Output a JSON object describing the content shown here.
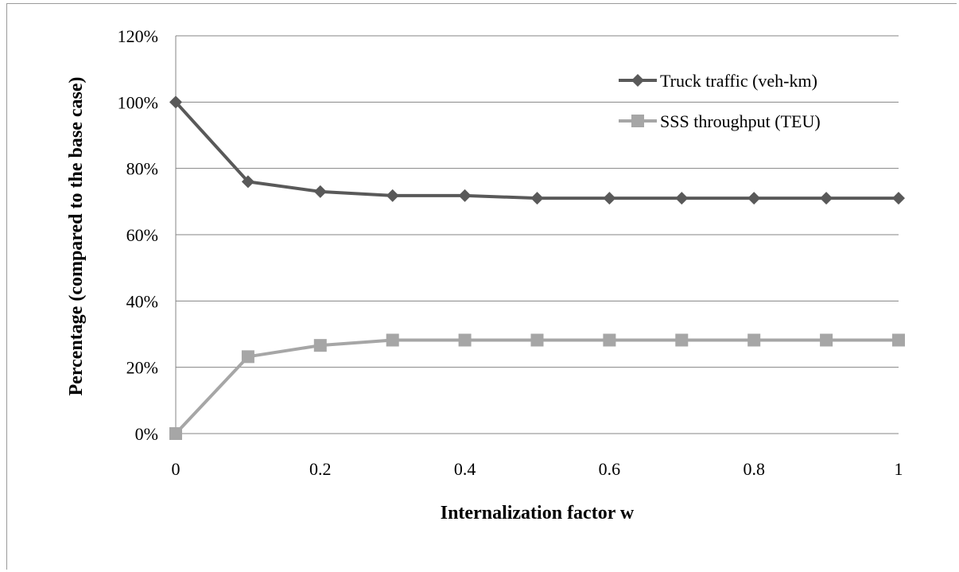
{
  "chart_data": {
    "type": "line",
    "xlabel": "Internalization factor w",
    "ylabel": "Percentage (compared to the base case)",
    "x": [
      0,
      0.1,
      0.2,
      0.3,
      0.4,
      0.5,
      0.6,
      0.7,
      0.8,
      0.9,
      1
    ],
    "x_tick_values": [
      0,
      0.2,
      0.4,
      0.6,
      0.8,
      1
    ],
    "x_tick_labels": [
      "0",
      "0.2",
      "0.4",
      "0.6",
      "0.8",
      "1"
    ],
    "xlim": [
      0,
      1
    ],
    "ylim": [
      0,
      1.2
    ],
    "y_tick_values": [
      0,
      0.2,
      0.4,
      0.6,
      0.8,
      1.0,
      1.2
    ],
    "y_tick_labels": [
      "0%",
      "20%",
      "40%",
      "60%",
      "80%",
      "100%",
      "120%"
    ],
    "grid": "horizontal",
    "legend_position": "top-right",
    "series": [
      {
        "name": "Truck traffic (veh-km)",
        "color": "#595959",
        "marker": "diamond",
        "values": [
          1.0,
          0.76,
          0.73,
          0.718,
          0.718,
          0.71,
          0.71,
          0.71,
          0.71,
          0.71,
          0.71
        ]
      },
      {
        "name": "SSS throughput (TEU)",
        "color": "#a6a6a6",
        "marker": "square",
        "values": [
          0.0,
          0.232,
          0.266,
          0.282,
          0.282,
          0.282,
          0.282,
          0.282,
          0.282,
          0.282,
          0.282
        ]
      }
    ]
  }
}
